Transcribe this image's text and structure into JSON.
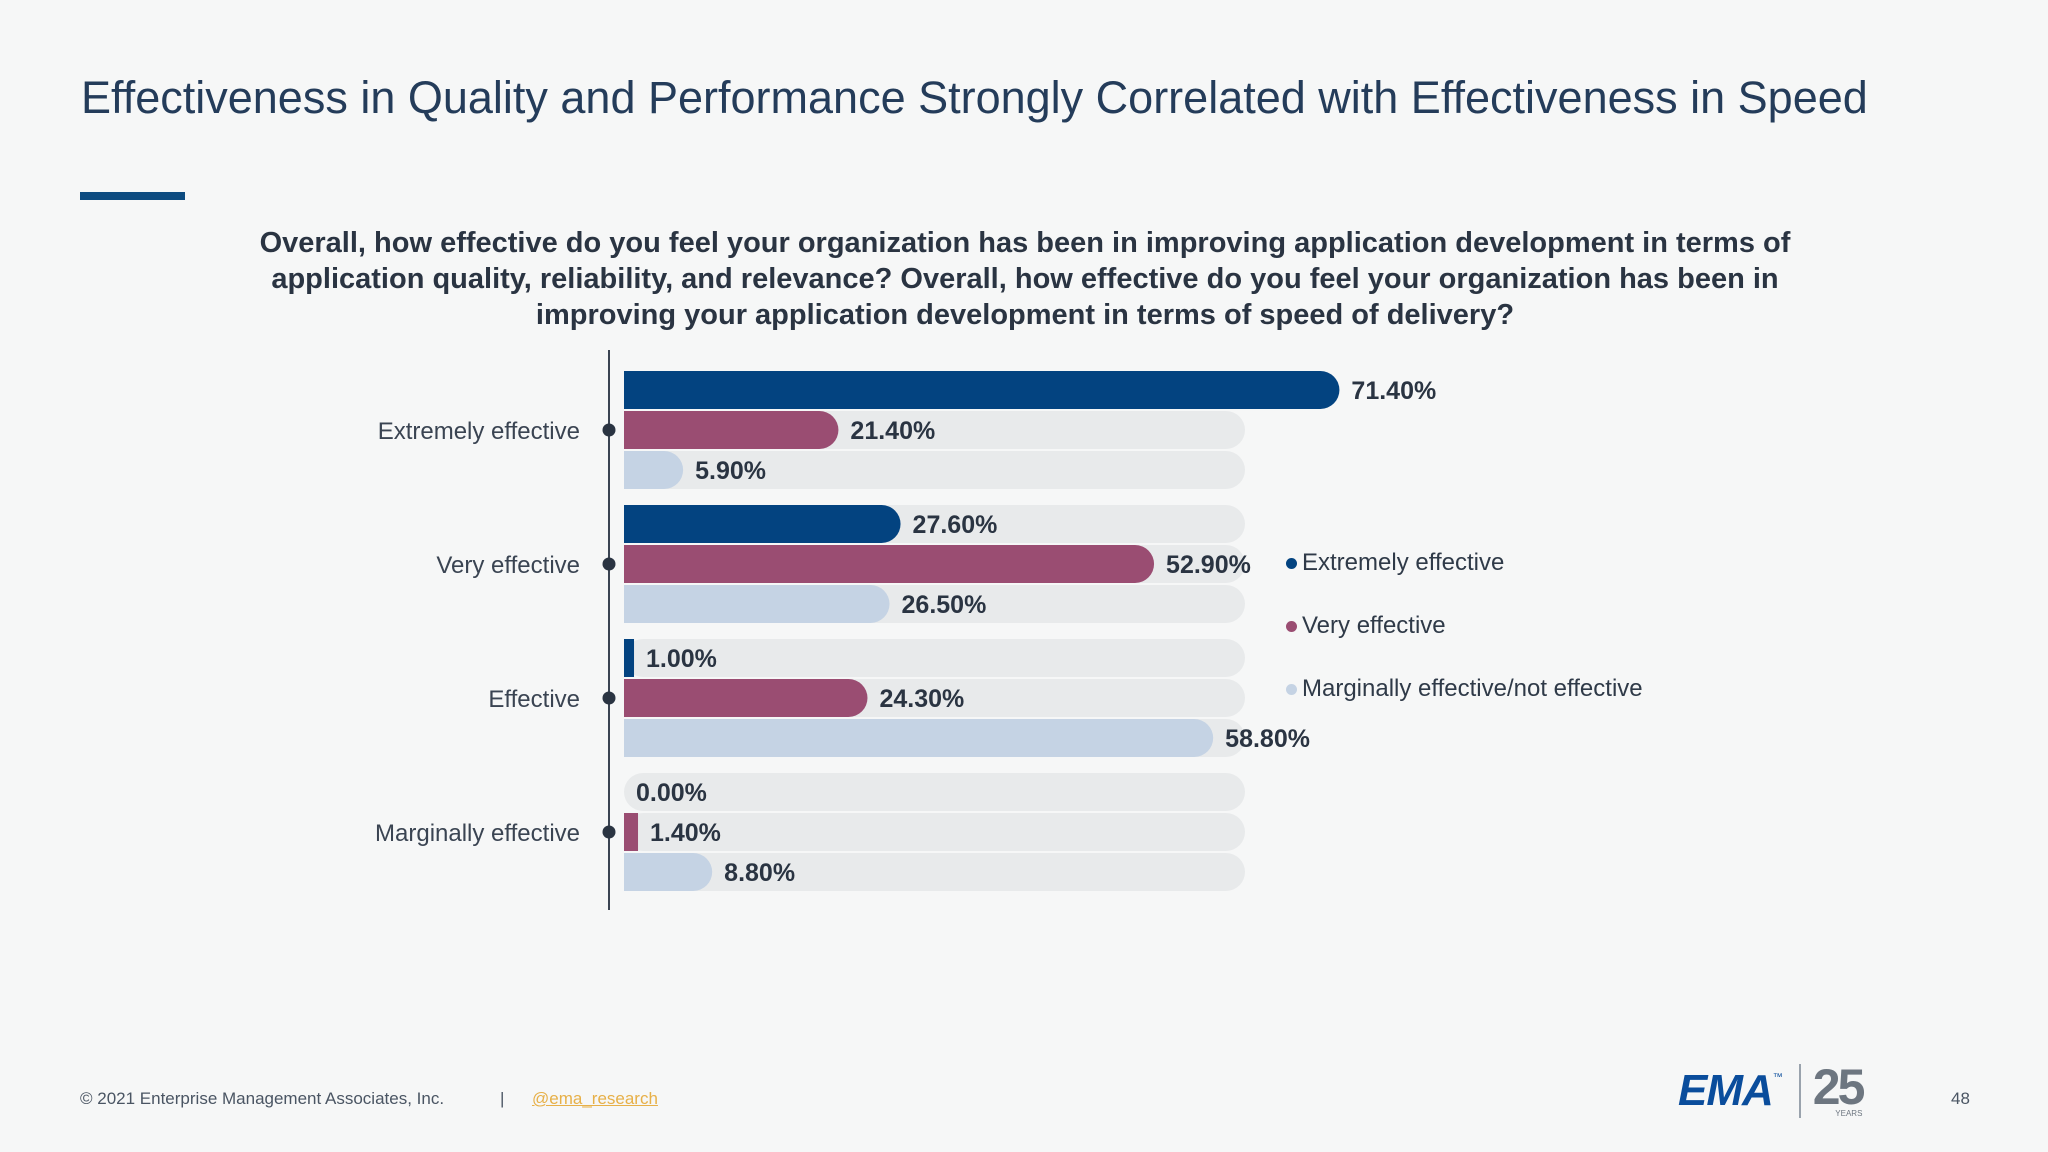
{
  "slide": {
    "title": "Effectiveness in Quality and Performance Strongly Correlated with Effectiveness in Speed",
    "question": "Overall, how effective do you feel your organization has been in improving application development in terms of application quality, reliability, and relevance? Overall, how effective do you feel your organization has been in improving your application development in terms of speed of delivery?",
    "page_number": "48"
  },
  "footer": {
    "copyright": "© 2021 Enterprise Management Associates, Inc.",
    "separator": "|",
    "handle": "@ema_research"
  },
  "logo": {
    "brand": "EMA",
    "tm": "™",
    "anniversary": "25",
    "years_label": "YEARS"
  },
  "colors": {
    "accent": "#0d4b80",
    "series_dark": "#034380",
    "series_mauve": "#9a4d72",
    "series_light": "#c5d3e4",
    "track": "#e8eaeb"
  },
  "chart_data": {
    "type": "bar",
    "orientation": "horizontal",
    "categories": [
      "Extremely effective",
      "Very effective",
      "Effective",
      "Marginally effective"
    ],
    "series": [
      {
        "name": "Extremely effective",
        "color": "#034380",
        "values": [
          71.4,
          27.6,
          1.0,
          0.0
        ],
        "labels": [
          "71.40%",
          "27.60%",
          "1.00%",
          "0.00%"
        ]
      },
      {
        "name": "Very effective",
        "color": "#9a4d72",
        "values": [
          21.4,
          52.9,
          24.3,
          1.4
        ],
        "labels": [
          "21.40%",
          "52.90%",
          "24.30%",
          "1.40%"
        ]
      },
      {
        "name": "Marginally effective/not effective",
        "color": "#c5d3e4",
        "values": [
          5.9,
          26.5,
          58.8,
          8.8
        ],
        "labels": [
          "5.90%",
          "26.50%",
          "58.80%",
          "8.80%"
        ]
      }
    ],
    "xlim": [
      0,
      80
    ],
    "legend_position": "right",
    "grid": false
  }
}
